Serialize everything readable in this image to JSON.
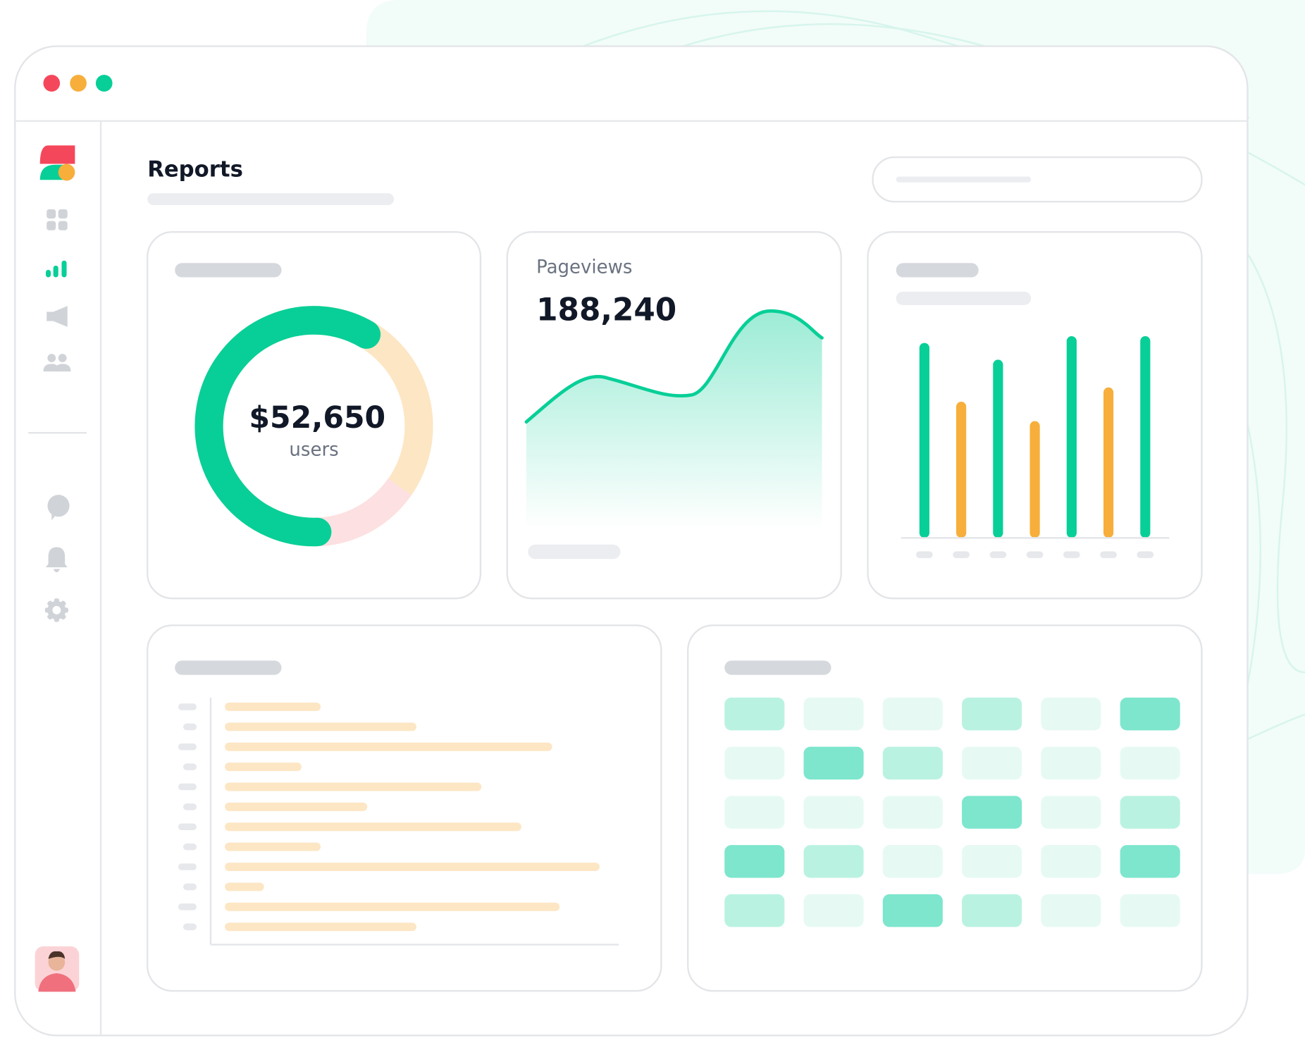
{
  "header": {
    "title": "Reports"
  },
  "cards": {
    "revenue": {
      "value": "$52,650",
      "label": "users"
    },
    "pageviews": {
      "label": "Pageviews",
      "value": "188,240"
    }
  }
}
